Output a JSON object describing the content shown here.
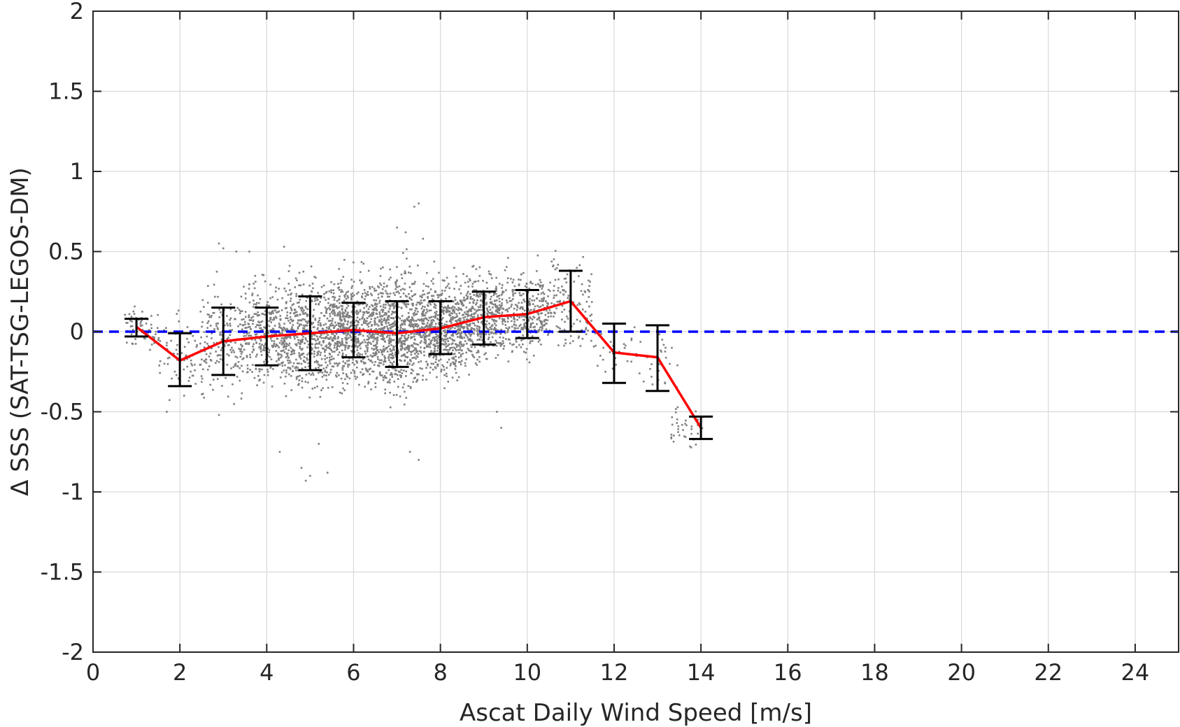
{
  "chart_data": {
    "type": "scatter",
    "title": "",
    "xlabel": "Ascat Daily Wind Speed [m/s]",
    "ylabel": "Δ SSS (SAT-TSG-LEGOS-DM)",
    "xlim": [
      0,
      25
    ],
    "ylim": [
      -2,
      2
    ],
    "xticks": [
      0,
      2,
      4,
      6,
      8,
      10,
      12,
      14,
      16,
      18,
      20,
      22,
      24
    ],
    "yticks": [
      2,
      1.5,
      1,
      0.5,
      0,
      -0.5,
      -1,
      -1.5,
      -2
    ],
    "ytick_labels": [
      "2",
      "1.5",
      "1",
      "0.5",
      "0",
      "-0.5",
      "-1",
      "-1.5",
      "-2"
    ],
    "grid": true,
    "colors": {
      "scatter": "#808080",
      "mean_line": "#ff0000",
      "error_bars": "#000000",
      "zero_line": "#0000ff",
      "grid": "#d9d9d9",
      "axes": "#262626"
    },
    "reference_line": {
      "y": 0,
      "style": "dashed"
    },
    "mean_series": {
      "x": [
        1,
        2,
        3,
        4,
        5,
        6,
        7,
        8,
        9,
        10,
        11,
        12,
        13,
        14
      ],
      "y": [
        0.03,
        -0.18,
        -0.06,
        -0.03,
        -0.01,
        0.01,
        -0.01,
        0.02,
        0.09,
        0.11,
        0.19,
        -0.13,
        -0.16,
        -0.6
      ],
      "err_low": [
        -0.03,
        -0.34,
        -0.27,
        -0.21,
        -0.24,
        -0.16,
        -0.22,
        -0.14,
        -0.08,
        -0.04,
        0.0,
        -0.32,
        -0.37,
        -0.67
      ],
      "err_high": [
        0.08,
        -0.01,
        0.15,
        0.15,
        0.22,
        0.18,
        0.19,
        0.19,
        0.25,
        0.26,
        0.38,
        0.05,
        0.04,
        -0.53
      ]
    },
    "scatter_clusters": [
      {
        "x_range": [
          0.7,
          1.5
        ],
        "y_center": 0.02,
        "y_spread": 0.06,
        "count": 60
      },
      {
        "x_range": [
          1.5,
          2.5
        ],
        "y_center": -0.15,
        "y_spread": 0.12,
        "count": 70
      },
      {
        "x_range": [
          2.5,
          3.5
        ],
        "y_center": -0.05,
        "y_spread": 0.16,
        "count": 180
      },
      {
        "x_range": [
          3.5,
          4.5
        ],
        "y_center": -0.02,
        "y_spread": 0.15,
        "count": 350
      },
      {
        "x_range": [
          4.5,
          5.5
        ],
        "y_center": -0.01,
        "y_spread": 0.17,
        "count": 450
      },
      {
        "x_range": [
          5.5,
          6.5
        ],
        "y_center": 0.01,
        "y_spread": 0.15,
        "count": 600
      },
      {
        "x_range": [
          6.5,
          7.5
        ],
        "y_center": 0.0,
        "y_spread": 0.18,
        "count": 650
      },
      {
        "x_range": [
          7.5,
          8.5
        ],
        "y_center": 0.02,
        "y_spread": 0.14,
        "count": 600
      },
      {
        "x_range": [
          8.5,
          9.5
        ],
        "y_center": 0.09,
        "y_spread": 0.13,
        "count": 450
      },
      {
        "x_range": [
          9.5,
          10.5
        ],
        "y_center": 0.11,
        "y_spread": 0.12,
        "count": 300
      },
      {
        "x_range": [
          10.5,
          11.5
        ],
        "y_center": 0.18,
        "y_spread": 0.14,
        "count": 130
      },
      {
        "x_range": [
          11.5,
          12.5
        ],
        "y_center": -0.12,
        "y_spread": 0.1,
        "count": 25
      },
      {
        "x_range": [
          12.5,
          13.5
        ],
        "y_center": -0.2,
        "y_spread": 0.1,
        "count": 30
      },
      {
        "x_range": [
          13.3,
          14.1
        ],
        "y_center": -0.6,
        "y_spread": 0.06,
        "count": 40
      }
    ],
    "scatter_outliers": [
      {
        "x": 2.9,
        "y": 0.55
      },
      {
        "x": 3.0,
        "y": 0.52
      },
      {
        "x": 3.3,
        "y": 0.5
      },
      {
        "x": 3.6,
        "y": 0.5
      },
      {
        "x": 4.4,
        "y": 0.53
      },
      {
        "x": 4.3,
        "y": -0.75
      },
      {
        "x": 4.8,
        "y": -0.85
      },
      {
        "x": 4.9,
        "y": -0.93
      },
      {
        "x": 5.0,
        "y": -0.9
      },
      {
        "x": 5.2,
        "y": -0.7
      },
      {
        "x": 5.4,
        "y": -0.88
      },
      {
        "x": 7.0,
        "y": 0.65
      },
      {
        "x": 7.2,
        "y": 0.62
      },
      {
        "x": 7.4,
        "y": 0.78
      },
      {
        "x": 7.5,
        "y": 0.8
      },
      {
        "x": 7.6,
        "y": 0.58
      },
      {
        "x": 7.3,
        "y": -0.75
      },
      {
        "x": 7.5,
        "y": -0.8
      },
      {
        "x": 9.4,
        "y": -0.6
      },
      {
        "x": 9.3,
        "y": -0.5
      },
      {
        "x": 2.9,
        "y": -0.52
      },
      {
        "x": 1.7,
        "y": -0.5
      },
      {
        "x": 11.8,
        "y": -0.25
      },
      {
        "x": 12.0,
        "y": -0.22
      }
    ]
  }
}
